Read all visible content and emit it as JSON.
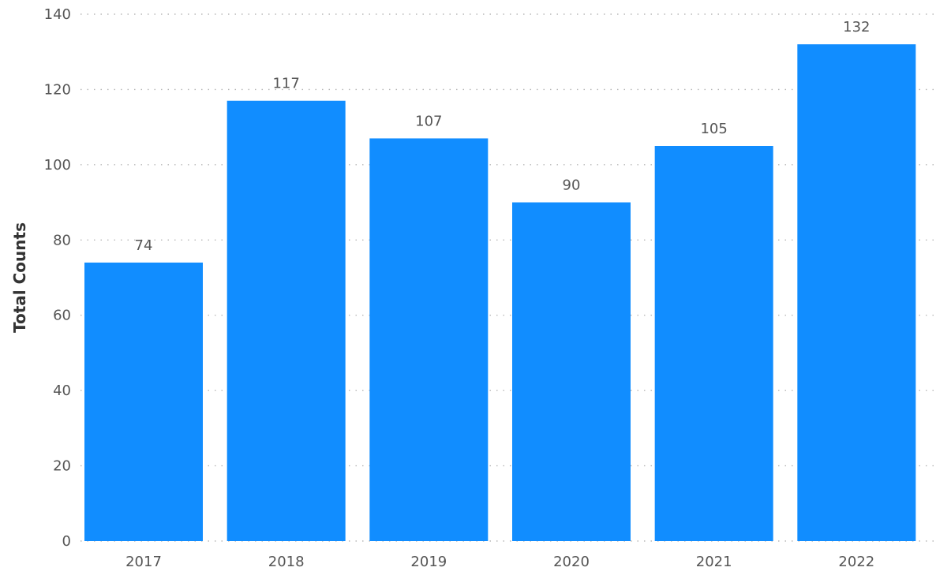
{
  "chart_data": {
    "type": "bar",
    "categories": [
      "2017",
      "2018",
      "2019",
      "2020",
      "2021",
      "2022"
    ],
    "values": [
      74,
      117,
      107,
      90,
      105,
      132
    ],
    "title": "",
    "xlabel": "",
    "ylabel": "Total Counts",
    "ylim": [
      0,
      140
    ],
    "yticks": [
      0,
      20,
      40,
      60,
      80,
      100,
      120,
      140
    ],
    "grid": true,
    "data_labels": true,
    "bar_color": "#118DFF"
  }
}
